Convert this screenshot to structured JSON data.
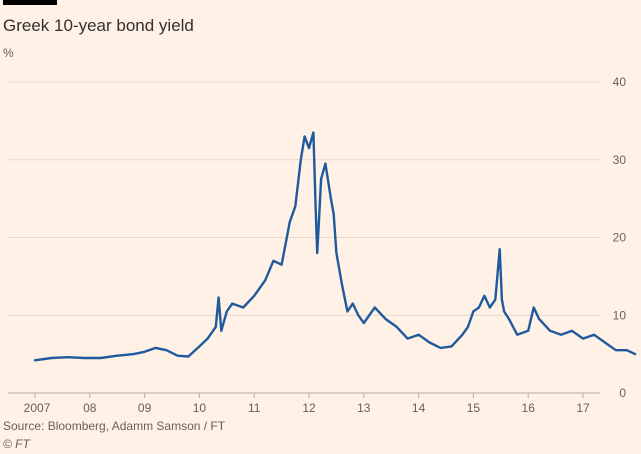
{
  "header": {
    "title": "Greek 10-year bond yield",
    "unit": "%"
  },
  "footer": {
    "source": "Source: Bloomberg, Adamm Samson / FT",
    "copyright": "© FT"
  },
  "colors": {
    "background": "#fff1e5",
    "line": "#1f5a9e",
    "grid": "#e6d9ce",
    "axis": "#66605c"
  },
  "chart_data": {
    "type": "line",
    "title": "Greek 10-year bond yield",
    "xlabel": "",
    "ylabel": "%",
    "xlim": [
      2007.0,
      2018.0
    ],
    "ylim": [
      0,
      40
    ],
    "yticks": [
      0,
      10,
      20,
      30,
      40
    ],
    "ytick_labels": [
      "0",
      "10",
      "20",
      "30",
      "40"
    ],
    "xticks": [
      2007,
      2008,
      2009,
      2010,
      2011,
      2012,
      2013,
      2014,
      2015,
      2016,
      2017
    ],
    "xtick_labels": [
      "2007",
      "08",
      "09",
      "10",
      "11",
      "12",
      "13",
      "14",
      "15",
      "16",
      "17"
    ],
    "grid": true,
    "y_axis_side": "right",
    "series": [
      {
        "color": "#1f5a9e",
        "x": [
          2007.0,
          2007.3,
          2007.6,
          2007.9,
          2008.2,
          2008.5,
          2008.8,
          2009.0,
          2009.2,
          2009.4,
          2009.6,
          2009.8,
          2010.0,
          2010.15,
          2010.3,
          2010.35,
          2010.4,
          2010.5,
          2010.6,
          2010.8,
          2011.0,
          2011.2,
          2011.35,
          2011.5,
          2011.65,
          2011.75,
          2011.85,
          2011.92,
          2012.0,
          2012.08,
          2012.12,
          2012.15,
          2012.18,
          2012.22,
          2012.3,
          2012.4,
          2012.45,
          2012.5,
          2012.6,
          2012.7,
          2012.8,
          2012.9,
          2013.0,
          2013.2,
          2013.4,
          2013.6,
          2013.8,
          2014.0,
          2014.2,
          2014.4,
          2014.6,
          2014.8,
          2014.9,
          2015.0,
          2015.1,
          2015.2,
          2015.3,
          2015.4,
          2015.48,
          2015.52,
          2015.56,
          2015.65,
          2015.8,
          2016.0,
          2016.1,
          2016.2,
          2016.4,
          2016.6,
          2016.8,
          2017.0,
          2017.2,
          2017.4,
          2017.6,
          2017.8,
          2017.95
        ],
        "y": [
          4.2,
          4.5,
          4.6,
          4.5,
          4.5,
          4.8,
          5.0,
          5.3,
          5.8,
          5.5,
          4.8,
          4.7,
          6.0,
          7.0,
          8.5,
          12.3,
          8.0,
          10.5,
          11.5,
          11.0,
          12.5,
          14.5,
          17.0,
          16.5,
          22.0,
          24.0,
          30.0,
          33.0,
          31.5,
          33.5,
          24.0,
          18.0,
          22.0,
          27.5,
          29.5,
          25.0,
          23.0,
          18.0,
          14.0,
          10.5,
          11.5,
          10.0,
          9.0,
          11.0,
          9.5,
          8.5,
          7.0,
          7.5,
          6.5,
          5.8,
          6.0,
          7.5,
          8.5,
          10.5,
          11.0,
          12.5,
          11.0,
          12.0,
          18.5,
          12.0,
          10.5,
          9.5,
          7.5,
          8.0,
          11.0,
          9.5,
          8.0,
          7.5,
          8.0,
          7.0,
          7.5,
          6.5,
          5.5,
          5.5,
          5.0
        ]
      }
    ]
  }
}
